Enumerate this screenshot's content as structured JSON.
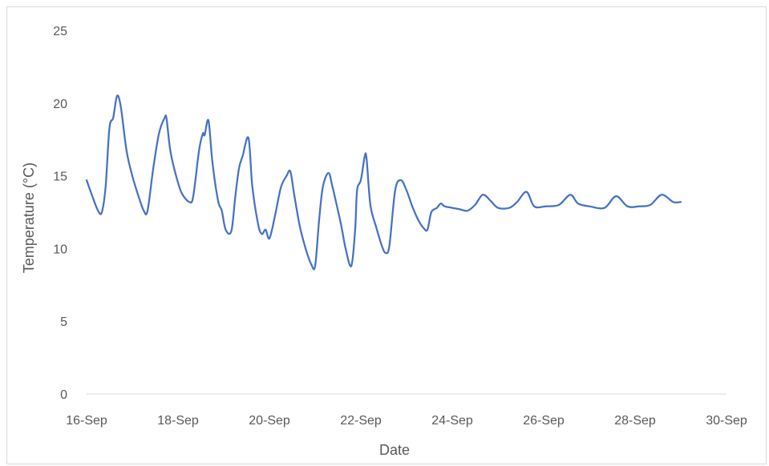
{
  "chart_data": {
    "type": "line",
    "xlabel": "Date",
    "ylabel": "Temperature (°C)",
    "ylim": [
      0,
      25
    ],
    "yticks": [
      0,
      5,
      10,
      15,
      20,
      25
    ],
    "xlim": [
      "16-Sep",
      "30-Sep"
    ],
    "xticks": [
      "16-Sep",
      "18-Sep",
      "20-Sep",
      "22-Sep",
      "24-Sep",
      "26-Sep",
      "28-Sep",
      "30-Sep"
    ],
    "grid": false,
    "legend": "none",
    "series": [
      {
        "color": "#4472C4",
        "points": [
          [
            "16-Sep 00:00",
            14.7
          ],
          [
            "16-Sep 03:00",
            13.6
          ],
          [
            "16-Sep 06:00",
            12.6
          ],
          [
            "16-Sep 08:00",
            12.5
          ],
          [
            "16-Sep 10:00",
            14.3
          ],
          [
            "16-Sep 12:00",
            18.3
          ],
          [
            "16-Sep 14:00",
            19.0
          ],
          [
            "16-Sep 16:00",
            20.5
          ],
          [
            "16-Sep 18:00",
            19.7
          ],
          [
            "16-Sep 21:00",
            16.7
          ],
          [
            "17-Sep 00:00",
            15.0
          ],
          [
            "17-Sep 03:00",
            13.7
          ],
          [
            "17-Sep 06:00",
            12.6
          ],
          [
            "17-Sep 08:00",
            12.6
          ],
          [
            "17-Sep 11:00",
            15.5
          ],
          [
            "17-Sep 14:00",
            17.9
          ],
          [
            "17-Sep 17:00",
            19.0
          ],
          [
            "17-Sep 18:00",
            18.9
          ],
          [
            "17-Sep 20:00",
            16.7
          ],
          [
            "17-Sep 23:00",
            15.0
          ],
          [
            "18-Sep 02:00",
            13.8
          ],
          [
            "18-Sep 06:00",
            13.2
          ],
          [
            "18-Sep 08:00",
            13.6
          ],
          [
            "18-Sep 11:00",
            16.7
          ],
          [
            "18-Sep 13:00",
            17.9
          ],
          [
            "18-Sep 14:00",
            17.8
          ],
          [
            "18-Sep 16:00",
            18.8
          ],
          [
            "18-Sep 18:00",
            16.0
          ],
          [
            "18-Sep 21:00",
            13.3
          ],
          [
            "18-Sep 23:00",
            12.6
          ],
          [
            "19-Sep 01:00",
            11.3
          ],
          [
            "19-Sep 04:00",
            11.2
          ],
          [
            "19-Sep 06:00",
            13.5
          ],
          [
            "19-Sep 08:00",
            15.5
          ],
          [
            "19-Sep 10:00",
            16.4
          ],
          [
            "19-Sep 13:00",
            17.6
          ],
          [
            "19-Sep 15:00",
            14.3
          ],
          [
            "19-Sep 18:00",
            11.7
          ],
          [
            "19-Sep 20:00",
            11.0
          ],
          [
            "19-Sep 22:00",
            11.3
          ],
          [
            "20-Sep 00:00",
            10.7
          ],
          [
            "20-Sep 03:00",
            12.3
          ],
          [
            "20-Sep 06:00",
            14.2
          ],
          [
            "20-Sep 09:00",
            15.0
          ],
          [
            "20-Sep 11:00",
            15.3
          ],
          [
            "20-Sep 13:00",
            13.7
          ],
          [
            "20-Sep 16:00",
            11.5
          ],
          [
            "20-Sep 19:00",
            10.0
          ],
          [
            "20-Sep 22:00",
            8.9
          ],
          [
            "21-Sep 00:00",
            8.8
          ],
          [
            "21-Sep 02:00",
            11.8
          ],
          [
            "21-Sep 04:00",
            14.2
          ],
          [
            "21-Sep 07:00",
            15.2
          ],
          [
            "21-Sep 09:00",
            14.3
          ],
          [
            "21-Sep 12:00",
            12.6
          ],
          [
            "21-Sep 14:00",
            11.4
          ],
          [
            "21-Sep 16:00",
            10.0
          ],
          [
            "21-Sep 19:00",
            8.8
          ],
          [
            "21-Sep 21:00",
            11.3
          ],
          [
            "21-Sep 22:00",
            14.0
          ],
          [
            "22-Sep 00:00",
            14.7
          ],
          [
            "22-Sep 02:00",
            16.3
          ],
          [
            "22-Sep 03:00",
            16.2
          ],
          [
            "22-Sep 05:00",
            13.0
          ],
          [
            "22-Sep 08:00",
            11.5
          ],
          [
            "22-Sep 11:00",
            10.2
          ],
          [
            "22-Sep 13:00",
            9.7
          ],
          [
            "22-Sep 15:00",
            10.2
          ],
          [
            "22-Sep 18:00",
            14.0
          ],
          [
            "22-Sep 21:00",
            14.7
          ],
          [
            "23-Sep 00:00",
            14.0
          ],
          [
            "23-Sep 03:00",
            12.9
          ],
          [
            "23-Sep 06:00",
            12.0
          ],
          [
            "23-Sep 09:00",
            11.4
          ],
          [
            "23-Sep 11:00",
            11.3
          ],
          [
            "23-Sep 13:00",
            12.5
          ],
          [
            "23-Sep 16:00",
            12.8
          ],
          [
            "23-Sep 18:00",
            13.1
          ],
          [
            "23-Sep 20:00",
            12.9
          ],
          [
            "24-Sep 00:00",
            12.8
          ],
          [
            "24-Sep 04:00",
            12.7
          ],
          [
            "24-Sep 08:00",
            12.6
          ],
          [
            "24-Sep 12:00",
            13.0
          ],
          [
            "24-Sep 16:00",
            13.7
          ],
          [
            "24-Sep 20:00",
            13.3
          ],
          [
            "25-Sep 00:00",
            12.8
          ],
          [
            "25-Sep 06:00",
            12.8
          ],
          [
            "25-Sep 10:00",
            13.2
          ],
          [
            "25-Sep 15:00",
            13.9
          ],
          [
            "25-Sep 19:00",
            12.9
          ],
          [
            "26-Sep 01:00",
            12.9
          ],
          [
            "26-Sep 08:00",
            13.0
          ],
          [
            "26-Sep 14:00",
            13.7
          ],
          [
            "26-Sep 18:00",
            13.1
          ],
          [
            "27-Sep 00:00",
            12.9
          ],
          [
            "27-Sep 08:00",
            12.8
          ],
          [
            "27-Sep 14:00",
            13.6
          ],
          [
            "27-Sep 20:00",
            12.9
          ],
          [
            "28-Sep 02:00",
            12.9
          ],
          [
            "28-Sep 08:00",
            13.0
          ],
          [
            "28-Sep 14:00",
            13.7
          ],
          [
            "28-Sep 20:00",
            13.2
          ],
          [
            "29-Sep 00:00",
            13.2
          ]
        ]
      }
    ]
  }
}
